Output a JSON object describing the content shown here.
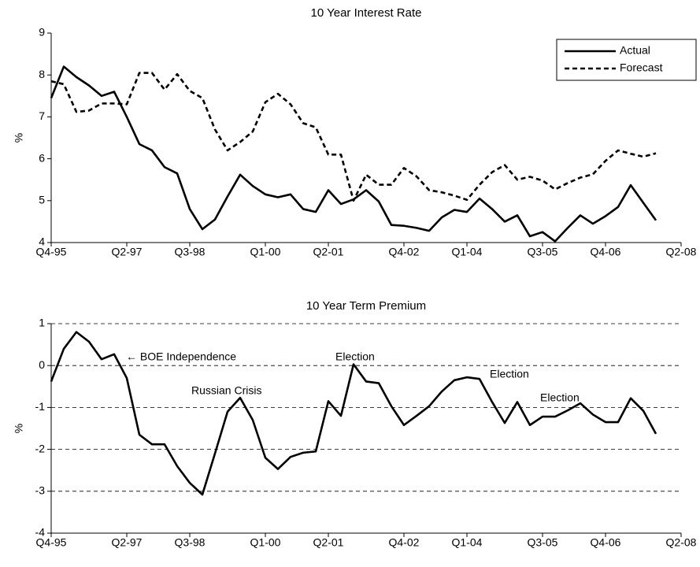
{
  "chart_data": [
    {
      "type": "line",
      "title": "10 Year Interest Rate",
      "y_label": "%",
      "categories": [
        "Q4-95",
        null,
        null,
        null,
        null,
        null,
        "Q2-97",
        null,
        null,
        null,
        null,
        "Q3-98",
        null,
        null,
        null,
        null,
        null,
        "Q1-00",
        null,
        null,
        null,
        null,
        "Q2-01",
        null,
        null,
        null,
        null,
        null,
        "Q4-02",
        null,
        null,
        null,
        null,
        "Q1-04",
        null,
        null,
        null,
        null,
        null,
        "Q3-05",
        null,
        null,
        null,
        null,
        "Q4-06",
        null,
        null,
        null,
        null,
        null,
        "Q2-08"
      ],
      "series": [
        {
          "name": "Actual",
          "color": "#000000",
          "line_style": "solid",
          "values": [
            7.45,
            8.2,
            7.95,
            7.75,
            7.5,
            7.6,
            7.0,
            6.35,
            6.2,
            5.8,
            5.65,
            4.8,
            4.32,
            4.55,
            5.1,
            5.62,
            5.35,
            5.15,
            5.08,
            5.15,
            4.8,
            4.73,
            5.25,
            4.92,
            5.03,
            5.25,
            4.98,
            4.42,
            4.4,
            4.35,
            4.28,
            4.6,
            4.78,
            4.73,
            5.05,
            4.8,
            4.5,
            4.65,
            4.15,
            4.25,
            4.03,
            4.35,
            4.65,
            4.45,
            4.63,
            4.85,
            5.37,
            4.95,
            4.53,
            null,
            null
          ]
        },
        {
          "name": "Forecast",
          "color": "#000000",
          "line_style": "dashed",
          "values": [
            7.85,
            7.78,
            7.12,
            7.15,
            7.32,
            7.32,
            7.3,
            8.05,
            8.05,
            7.65,
            8.02,
            7.62,
            7.45,
            6.7,
            6.2,
            6.4,
            6.65,
            7.35,
            7.55,
            7.3,
            6.85,
            6.75,
            6.1,
            6.1,
            5.0,
            5.62,
            5.38,
            5.38,
            5.78,
            5.58,
            5.25,
            5.2,
            5.12,
            5.02,
            5.38,
            5.68,
            5.85,
            5.5,
            5.57,
            5.48,
            5.27,
            5.42,
            5.55,
            5.63,
            5.95,
            6.2,
            6.12,
            6.05,
            6.13,
            null,
            null
          ]
        }
      ],
      "ylim": [
        4,
        9
      ],
      "yticks": [
        4,
        5,
        6,
        7,
        8,
        9
      ],
      "grid": false,
      "legend": "upper right"
    },
    {
      "type": "line",
      "title": "10 Year Term Premium",
      "y_label": "%",
      "categories": [
        "Q4-95",
        null,
        null,
        null,
        null,
        null,
        "Q2-97",
        null,
        null,
        null,
        null,
        "Q3-98",
        null,
        null,
        null,
        null,
        null,
        "Q1-00",
        null,
        null,
        null,
        null,
        "Q2-01",
        null,
        null,
        null,
        null,
        null,
        "Q4-02",
        null,
        null,
        null,
        null,
        "Q1-04",
        null,
        null,
        null,
        null,
        null,
        "Q3-05",
        null,
        null,
        null,
        null,
        "Q4-06",
        null,
        null,
        null,
        null,
        null,
        "Q2-08"
      ],
      "series": [
        {
          "color": "#000000",
          "line_style": "solid",
          "values": [
            -0.38,
            0.4,
            0.8,
            0.57,
            0.15,
            0.27,
            -0.3,
            -1.65,
            -1.88,
            -1.88,
            -2.4,
            -2.8,
            -3.08,
            -2.1,
            -1.1,
            -0.77,
            -1.3,
            -2.2,
            -2.47,
            -2.18,
            -2.08,
            -2.05,
            -0.85,
            -1.2,
            0.03,
            -0.38,
            -0.42,
            -0.97,
            -1.42,
            -1.2,
            -0.97,
            -0.62,
            -0.35,
            -0.28,
            -0.32,
            -0.87,
            -1.37,
            -0.87,
            -1.42,
            -1.22,
            -1.22,
            -1.07,
            -0.9,
            -1.17,
            -1.35,
            -1.35,
            -0.78,
            -1.08,
            -1.63,
            null,
            null
          ]
        }
      ],
      "ylim": [
        -4,
        1
      ],
      "yticks": [
        -4,
        -3,
        -2,
        -1,
        0,
        1
      ],
      "grid": true,
      "annotations": [
        "← BOE Independence",
        "Russian Crisis",
        "Election",
        "Election",
        "Election"
      ]
    }
  ]
}
